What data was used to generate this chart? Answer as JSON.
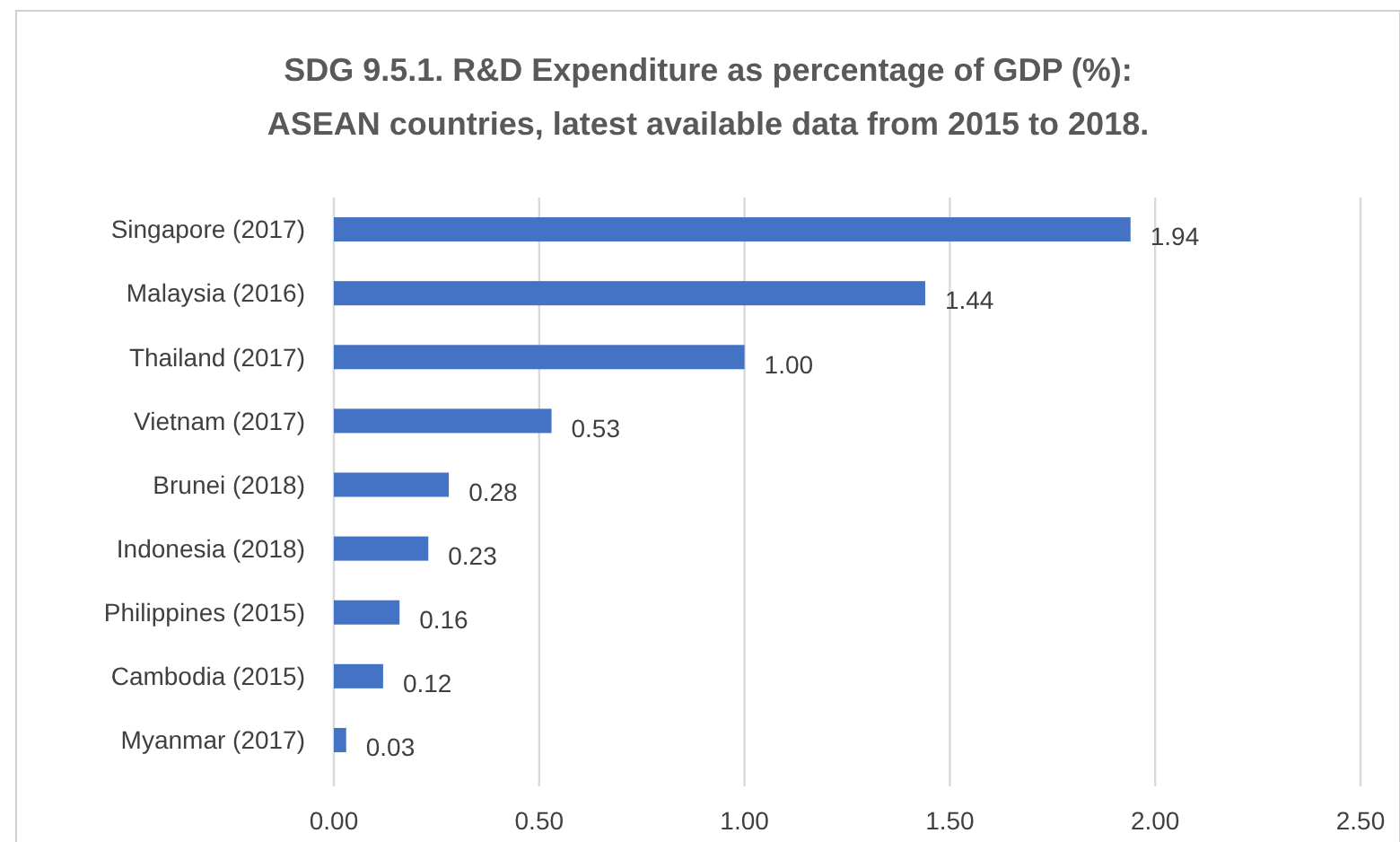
{
  "chart_data": {
    "type": "bar",
    "orientation": "horizontal",
    "title": "SDG 9.5.1. R&D Expenditure as percentage of GDP (%):\nASEAN countries, latest available data from 2015 to 2018.",
    "categories": [
      "Singapore (2017)",
      "Malaysia (2016)",
      "Thailand (2017)",
      "Vietnam (2017)",
      "Brunei (2018)",
      "Indonesia (2018)",
      "Philippines (2015)",
      "Cambodia (2015)",
      "Myanmar (2017)"
    ],
    "values": [
      1.94,
      1.44,
      1.0,
      0.53,
      0.28,
      0.23,
      0.16,
      0.12,
      0.03
    ],
    "value_labels": [
      "1.94",
      "1.44",
      "1.00",
      "0.53",
      "0.28",
      "0.23",
      "0.16",
      "0.12",
      "0.03"
    ],
    "color": "#4472c4",
    "xlim": [
      0,
      2.5
    ],
    "xticks": [
      {
        "value": 0,
        "label": "0.00"
      },
      {
        "value": 0.5,
        "label": "0.50"
      },
      {
        "value": 1,
        "label": "1.00"
      },
      {
        "value": 1.5,
        "label": "1.50"
      },
      {
        "value": 2,
        "label": "2.00"
      },
      {
        "value": 2.5,
        "label": "2.50"
      }
    ],
    "grid": "x"
  }
}
